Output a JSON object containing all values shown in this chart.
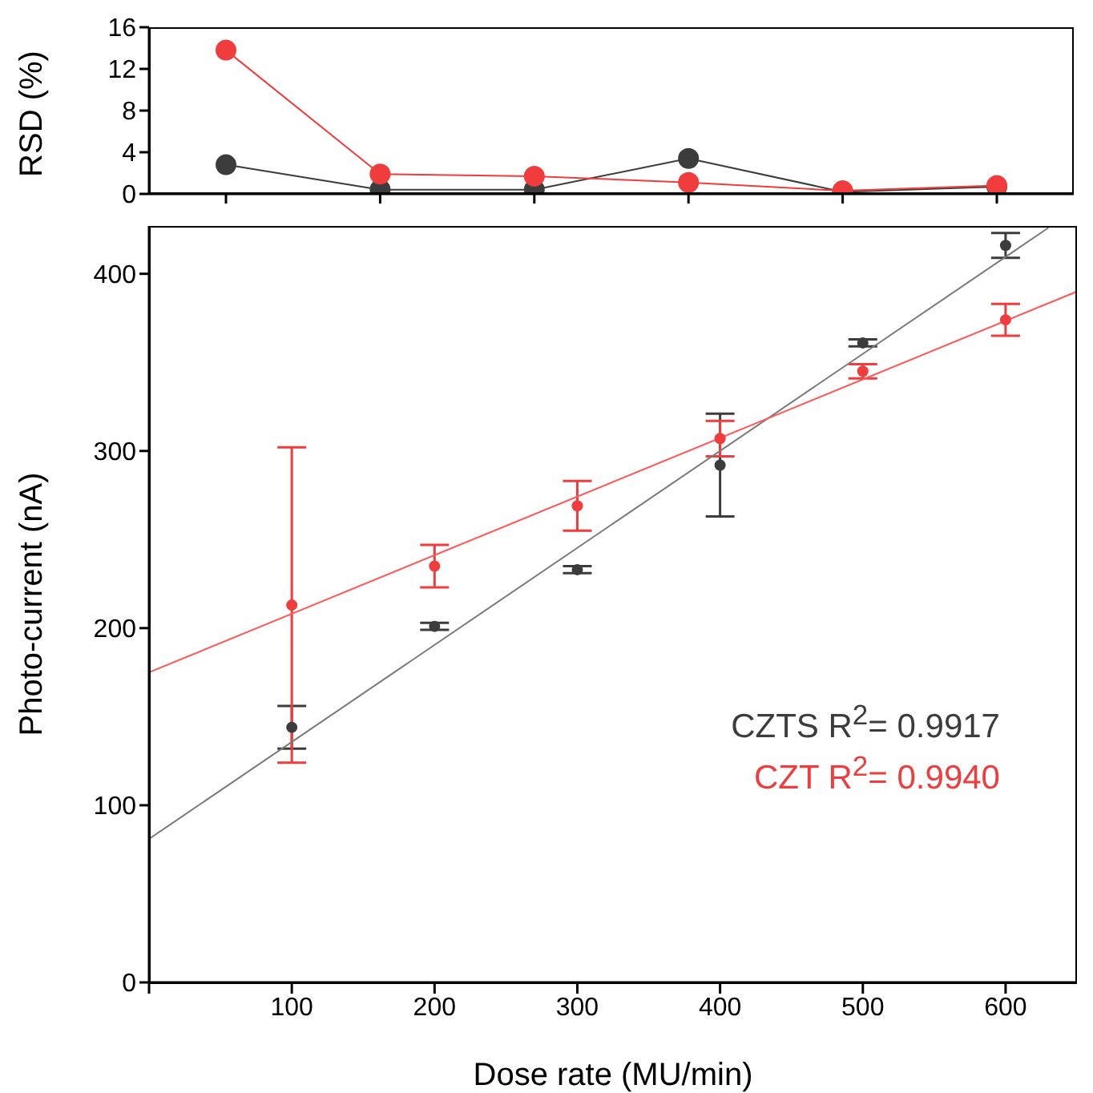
{
  "chart_data": [
    {
      "type": "line",
      "ylabel": "RSD (%)",
      "categories": [
        null,
        null,
        null,
        null,
        null,
        null
      ],
      "ylim": [
        0,
        16
      ],
      "yticks": [
        0,
        4,
        8,
        12,
        16
      ],
      "tick_labels": "y",
      "marker": "circle",
      "grid": false,
      "legend": false,
      "series": [
        {
          "color": "#3c3c3c",
          "values": [
            2.8,
            0.4,
            0.4,
            3.4,
            0.2,
            0.7
          ]
        },
        {
          "color": "#f03c3c",
          "values": [
            13.8,
            1.9,
            1.7,
            1.1,
            0.3,
            0.8
          ]
        }
      ]
    },
    {
      "type": "scatter",
      "xlabel": "Dose rate (MU/min)",
      "ylabel": "Photo-current (nA)",
      "xlim": [
        0,
        650
      ],
      "xticks": [
        {
          "value": 0,
          "label": null
        },
        100,
        200,
        300,
        400,
        500,
        600
      ],
      "ylim": [
        0,
        427
      ],
      "yticks": [
        0,
        100,
        200,
        300,
        400
      ],
      "marker": "circle",
      "grid": false,
      "legend": false,
      "annotations": [
        "CZTS R$^{2}$= 0.9917",
        "CZT R$^{2}$= 0.9940"
      ],
      "series": [
        {
          "color": "#3c3c3c",
          "x": [
            100,
            200,
            300,
            400,
            500,
            600
          ],
          "values": [
            144,
            201,
            233,
            292,
            361,
            416
          ],
          "errors": [
            12,
            2,
            2,
            29,
            2,
            7
          ]
        },
        {
          "color": "#f03c3c",
          "x": [
            100,
            200,
            300,
            400,
            500,
            600
          ],
          "values": [
            213,
            235,
            269,
            307,
            345,
            374
          ],
          "errors": [
            [
              124,
              302
            ],
            12,
            14,
            10,
            4,
            9
          ]
        },
        {
          "type": "line",
          "marker": "none",
          "color": "#7a7a7a",
          "x": [
            0,
            630
          ],
          "values": [
            81,
            426
          ]
        },
        {
          "type": "line",
          "marker": "none",
          "color": "#ff5a5a",
          "x": [
            0,
            650
          ],
          "values": [
            175,
            390
          ]
        }
      ]
    }
  ]
}
